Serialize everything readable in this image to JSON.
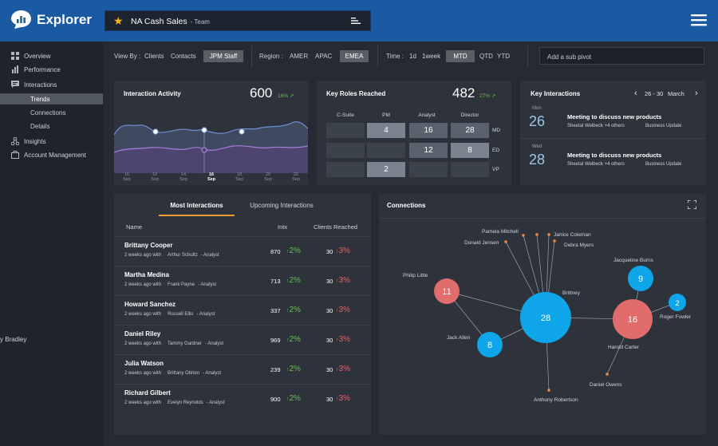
{
  "app": {
    "name": "Explorer"
  },
  "header": {
    "title": "NA Cash Sales",
    "subtitle": "- Team"
  },
  "sidebar": {
    "items": [
      {
        "label": "Overview"
      },
      {
        "label": "Performance"
      },
      {
        "label": "Interactions"
      },
      {
        "label": "Insights"
      },
      {
        "label": "Account Management"
      }
    ],
    "subitems": [
      {
        "label": "Trends"
      },
      {
        "label": "Connections"
      },
      {
        "label": "Details"
      }
    ],
    "stray_text": "y Bradley"
  },
  "filters": {
    "viewby_label": "View By :",
    "viewby": [
      "Clients",
      "Contacts",
      "JPM Staff"
    ],
    "region_label": "Region :",
    "region": [
      "AMER",
      "APAC",
      "EMEA"
    ],
    "time_label": "Time :",
    "time": [
      "1d",
      "1week",
      "MTD",
      "QTD",
      "YTD"
    ],
    "subpivot_placeholder": "Add a sub pivot"
  },
  "interaction_activity": {
    "title": "Interaction Activity",
    "value": "600",
    "change": "16%",
    "ticks": [
      {
        "d": "10",
        "m": "Sep"
      },
      {
        "d": "12",
        "m": "Sep"
      },
      {
        "d": "14",
        "m": "Sep"
      },
      {
        "d": "16",
        "m": "Sep"
      },
      {
        "d": "18",
        "m": "Sep"
      },
      {
        "d": "20",
        "m": "Sep"
      },
      {
        "d": "22",
        "m": "Sep"
      }
    ]
  },
  "key_roles": {
    "title": "Key Roles Reached",
    "value": "482",
    "change": "27%",
    "columns": [
      "C-Suite",
      "PM",
      "Analyst",
      "Director"
    ],
    "rows": [
      "MD",
      "ED",
      "VP"
    ],
    "cells": [
      [
        "",
        "4",
        "16",
        "28"
      ],
      [
        "",
        "",
        "12",
        "8"
      ],
      [
        "",
        "2",
        "",
        ""
      ]
    ]
  },
  "key_interactions": {
    "title": "Key Interactions",
    "range": "26 - 30",
    "month": "March",
    "meetings": [
      {
        "day_abbr": "Mon",
        "day": "26",
        "title": "Meeting to discuss new products",
        "people": "Sheetal Welbeck +4 others",
        "tag": "Business Update"
      },
      {
        "day_abbr": "Wed",
        "day": "28",
        "title": "Meeting to discuss new products",
        "people": "Sheetal Welbeck +4 others",
        "tag": "Business Update"
      }
    ]
  },
  "interactions_table": {
    "tabs": [
      "Most Interactions",
      "Upcoming Interactions"
    ],
    "columns": [
      "Name",
      "Intx",
      "Clients Reached"
    ],
    "rows": [
      {
        "name": "Brittany Cooper",
        "when": "2 weeks ago with",
        "person": "Arthur Schultz",
        "role": "- Analyst",
        "intx": "870",
        "intx_change": "2%",
        "clients": "30",
        "clients_change": "3%"
      },
      {
        "name": "Martha Medina",
        "when": "2 weeks ago with",
        "person": "Frank Payne",
        "role": "- Analyst",
        "intx": "713",
        "intx_change": "2%",
        "clients": "30",
        "clients_change": "3%"
      },
      {
        "name": "Howard Sanchez",
        "when": "2 weeks ago with",
        "person": "Russell Ellis",
        "role": "- Analyst",
        "intx": "337",
        "intx_change": "2%",
        "clients": "30",
        "clients_change": "3%"
      },
      {
        "name": "Daniel Riley",
        "when": "2 weeks ago with",
        "person": "Tammy Gardner",
        "role": "- Analyst",
        "intx": "969",
        "intx_change": "2%",
        "clients": "30",
        "clients_change": "3%"
      },
      {
        "name": "Julia Watson",
        "when": "2 weeks ago with",
        "person": "Brittany Obrien",
        "role": "- Analyst",
        "intx": "239",
        "intx_change": "2%",
        "clients": "30",
        "clients_change": "3%"
      },
      {
        "name": "Richard Gilbert",
        "when": "2 weeks ago with",
        "person": "Evelyn Reynolds",
        "role": "- Analyst",
        "intx": "900",
        "intx_change": "2%",
        "clients": "30",
        "clients_change": "3%"
      }
    ]
  },
  "connections": {
    "title": "Connections",
    "bubbles": [
      "28",
      "16",
      "11",
      "9",
      "8",
      "2"
    ],
    "labels": [
      "Pamela Mitchell",
      "Janice Coleman",
      "Donald Jensen",
      "Debra Myers",
      "Jacqueline Burns",
      "Philip Little",
      "Brittney",
      "Roger Fowler",
      "Jack Allen",
      "Harold Carter",
      "Daniel Owens",
      "Anthony Robertson"
    ]
  },
  "colors": {
    "accent": "#f29a2e",
    "positive": "#6bbf59",
    "negative": "#e56466",
    "bubble_blue": "#0ea5e9",
    "bubble_red": "#e06c6c",
    "header": "#1a5aa3"
  }
}
